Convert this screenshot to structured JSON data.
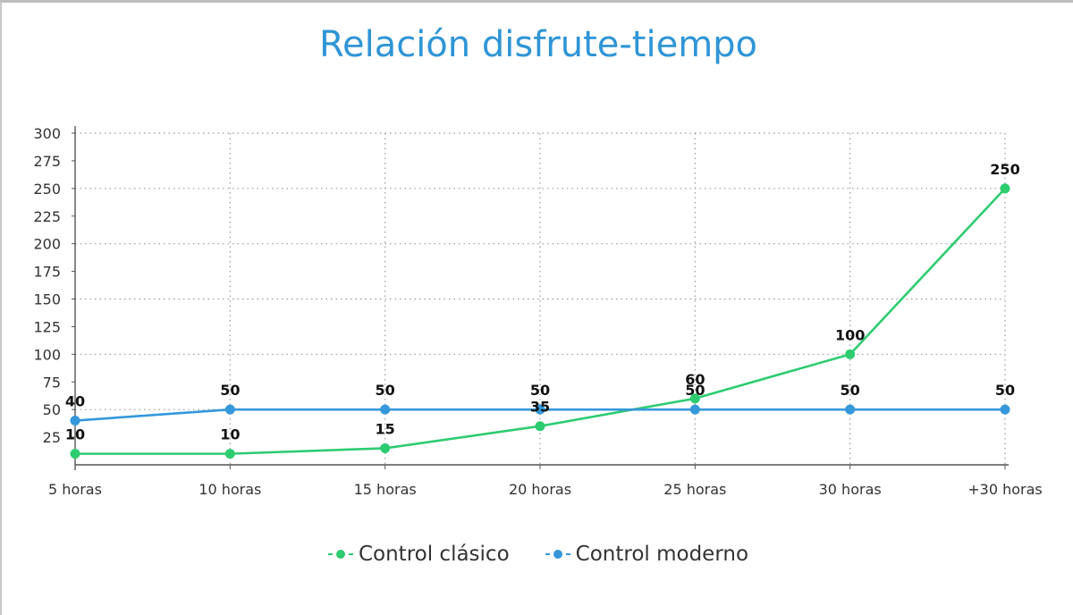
{
  "chart_data": {
    "type": "line",
    "title": "Relación disfrute-tiempo",
    "xlabel": "",
    "ylabel": "",
    "categories": [
      "5 horas",
      "10 horas",
      "15 horas",
      "20 horas",
      "25 horas",
      "30 horas",
      "+30 horas"
    ],
    "ylim": [
      0,
      300
    ],
    "yticks": [
      25,
      50,
      75,
      100,
      125,
      150,
      175,
      200,
      225,
      250,
      275,
      300
    ],
    "grid": true,
    "legend_position": "bottom-center",
    "series": [
      {
        "name": "Control clásico",
        "color": "#2ecc71",
        "values": [
          10,
          10,
          15,
          35,
          60,
          100,
          250
        ]
      },
      {
        "name": "Control moderno",
        "color": "#3498db",
        "values": [
          40,
          50,
          50,
          50,
          50,
          50,
          50
        ]
      }
    ]
  }
}
